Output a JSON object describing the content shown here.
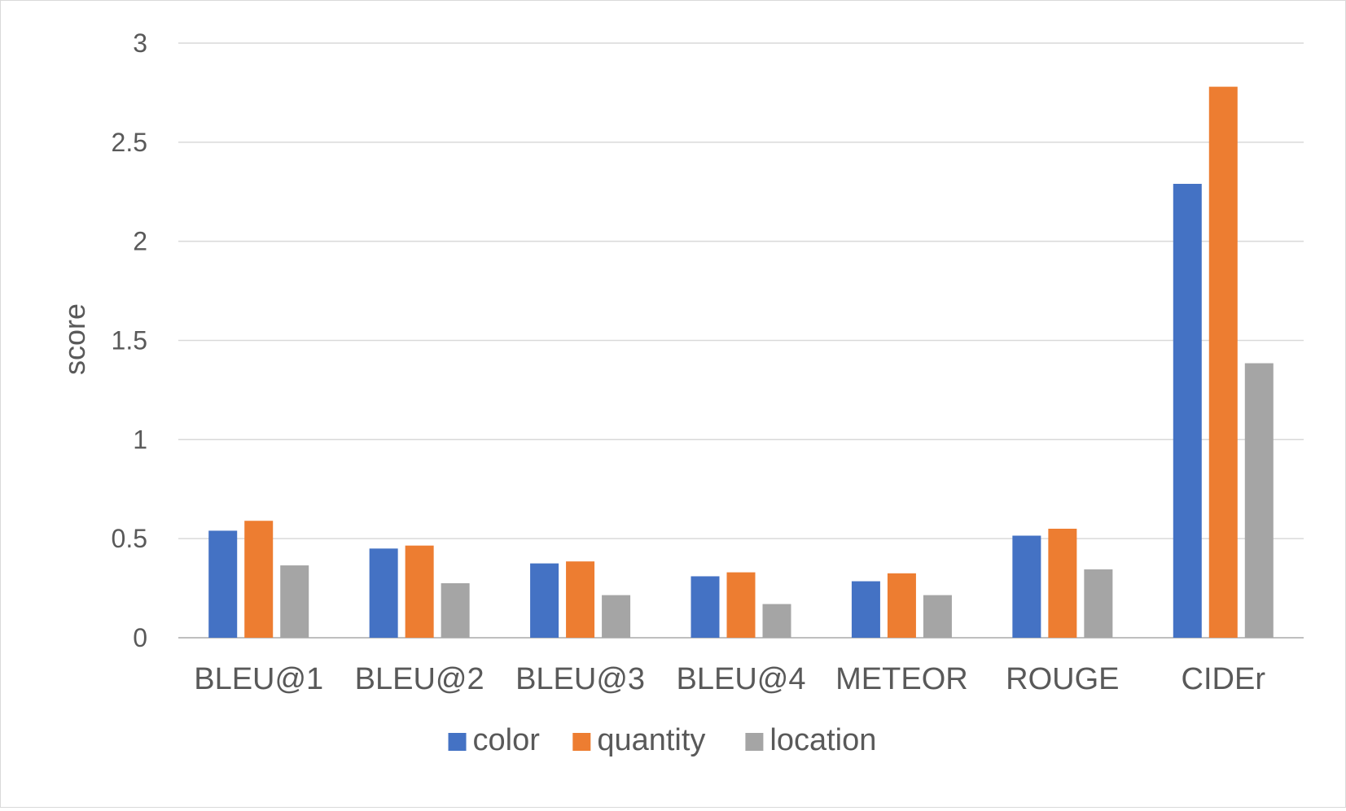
{
  "chart_data": {
    "type": "bar",
    "title": "",
    "xlabel": "",
    "ylabel": "score",
    "ylim": [
      0,
      3
    ],
    "yticks": [
      0,
      0.5,
      1,
      1.5,
      2,
      2.5,
      3
    ],
    "ytick_labels": [
      "0",
      "0.5",
      "1",
      "1.5",
      "2",
      "2.5",
      "3"
    ],
    "grid": true,
    "legend_position": "bottom",
    "categories": [
      "BLEU@1",
      "BLEU@2",
      "BLEU@3",
      "BLEU@4",
      "METEOR",
      "ROUGE",
      "CIDEr"
    ],
    "series": [
      {
        "name": "color",
        "color": "#4472c4",
        "values": [
          0.54,
          0.45,
          0.375,
          0.31,
          0.285,
          0.515,
          2.29
        ]
      },
      {
        "name": "quantity",
        "color": "#ed7d31",
        "values": [
          0.59,
          0.465,
          0.385,
          0.33,
          0.325,
          0.55,
          2.78
        ]
      },
      {
        "name": "location",
        "color": "#a5a5a5",
        "values": [
          0.365,
          0.275,
          0.215,
          0.17,
          0.215,
          0.345,
          1.385
        ]
      }
    ]
  }
}
